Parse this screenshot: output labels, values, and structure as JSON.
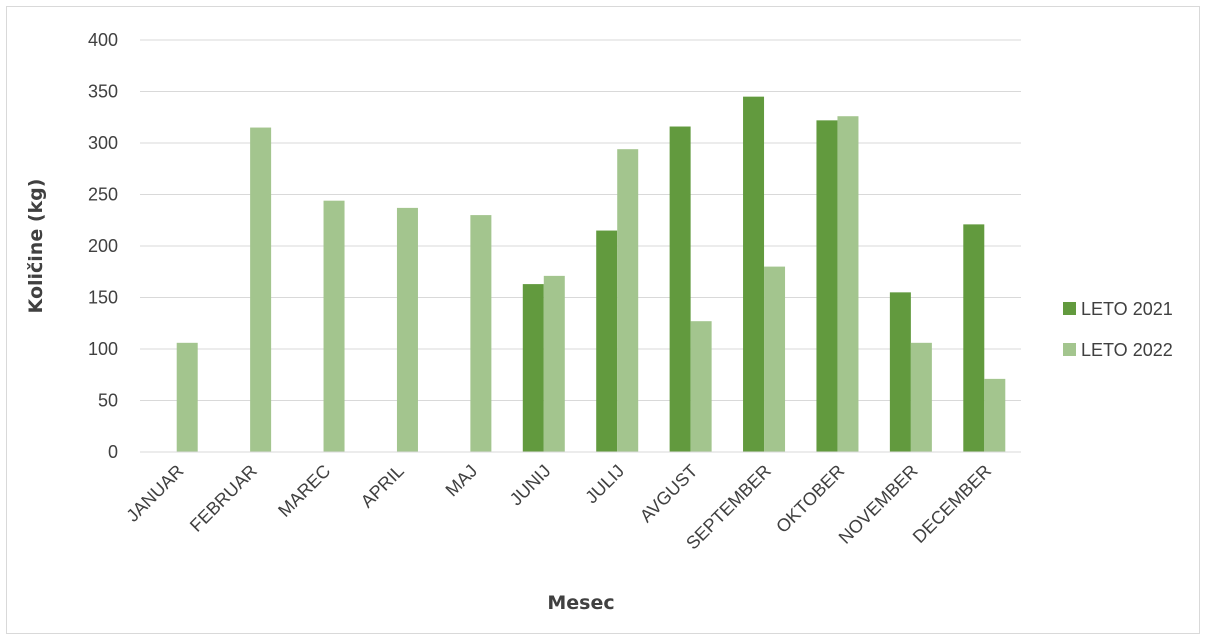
{
  "chart_data": {
    "type": "bar",
    "categories": [
      "JANUAR",
      "FEBRUAR",
      "MAREC",
      "APRIL",
      "MAJ",
      "JUNIJ",
      "JULIJ",
      "AVGUST",
      "SEPTEMBER",
      "OKTOBER",
      "NOVEMBER",
      "DECEMBER"
    ],
    "series": [
      {
        "name": "LETO 2021",
        "color": "#629a3e",
        "values": [
          0,
          0,
          0,
          0,
          0,
          163,
          215,
          316,
          345,
          322,
          155,
          221
        ]
      },
      {
        "name": "LETO 2022",
        "color": "#a3c58e",
        "values": [
          106,
          315,
          244,
          237,
          230,
          171,
          294,
          127,
          180,
          326,
          106,
          71
        ]
      }
    ],
    "xlabel": "Mesec",
    "ylabel": "Količine (kg)",
    "ylim": [
      0,
      400
    ],
    "yticks": [
      0,
      50,
      100,
      150,
      200,
      250,
      300,
      350,
      400
    ],
    "grid": true,
    "legend_position": "right",
    "gridline_color": "#d9d9d9"
  }
}
